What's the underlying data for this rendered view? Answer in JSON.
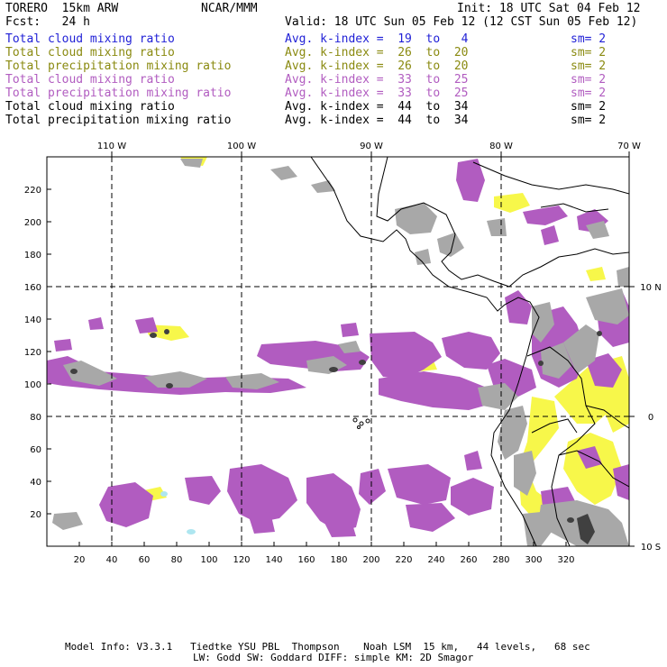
{
  "header": {
    "model": "TORERO  15km ARW",
    "org": "NCAR/MMM",
    "init": "Init: 18 UTC Sat 04 Feb 12",
    "fcst": "Fcst:   24 h",
    "valid": "Valid: 18 UTC Sun 05 Feb 12 (12 CST Sun 05 Feb 12)"
  },
  "legend": [
    {
      "field": "Total cloud mixing ratio",
      "kindex": "Avg. k-index =  19  to   4",
      "sm": "sm= 2",
      "color": "#1f1fd6"
    },
    {
      "field": "Total cloud mixing ratio",
      "kindex": "Avg. k-index =  26  to  20",
      "sm": "sm= 2",
      "color": "#8a8a10"
    },
    {
      "field": "Total precipitation mixing ratio",
      "kindex": "Avg. k-index =  26  to  20",
      "sm": "sm= 2",
      "color": "#8a8a10"
    },
    {
      "field": "Total cloud mixing ratio",
      "kindex": "Avg. k-index =  33  to  25",
      "sm": "sm= 2",
      "color": "#b15cc0"
    },
    {
      "field": "Total precipitation mixing ratio",
      "kindex": "Avg. k-index =  33  to  25",
      "sm": "sm= 2",
      "color": "#b15cc0"
    },
    {
      "field": "Total cloud mixing ratio",
      "kindex": "Avg. k-index =  44  to  34",
      "sm": "sm= 2",
      "color": "#000000"
    },
    {
      "field": "Total precipitation mixing ratio",
      "kindex": "Avg. k-index =  44  to  34",
      "sm": "sm= 2",
      "color": "#000000"
    }
  ],
  "axes": {
    "x_ticks": [
      "20",
      "40",
      "60",
      "80",
      "100",
      "120",
      "140",
      "160",
      "180",
      "200",
      "220",
      "240",
      "260",
      "280",
      "300",
      "320"
    ],
    "y_ticks": [
      "20",
      "40",
      "60",
      "80",
      "100",
      "120",
      "140",
      "160",
      "180",
      "200",
      "220"
    ],
    "lon_labels": [
      "110 W",
      "100 W",
      "90 W",
      "80 W",
      "70 W"
    ],
    "lat_labels": [
      "10 N",
      "0",
      "10 S"
    ]
  },
  "footer": {
    "line1": "Model Info: V3.3.1   Tiedtke YSU PBL  Thompson    Noah LSM  15 km,   44 levels,   68 sec",
    "line2": "LW: Godd SW: Goddard DIFF: simple KM: 2D Smagor"
  },
  "colors": {
    "yellow": "#f7f74a",
    "purple": "#b15cc0",
    "gray": "#a8a8a8",
    "darkgray": "#404040",
    "lightblue": "#aee6f0"
  }
}
